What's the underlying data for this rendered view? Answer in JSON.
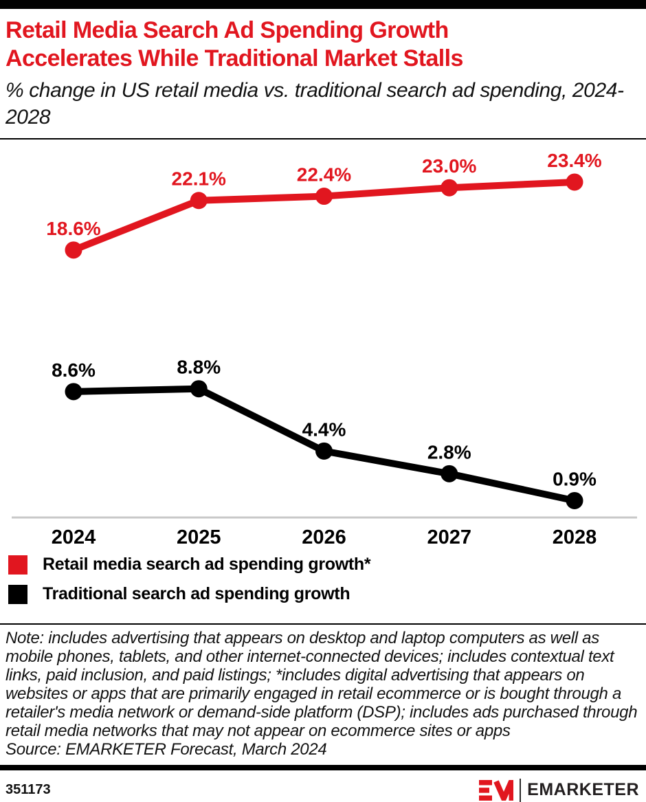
{
  "header": {
    "title": "Retail Media Search Ad Spending Growth Accelerates While Traditional Market Stalls",
    "subtitle": "% change in US retail media vs. traditional search ad spending, 2024-2028"
  },
  "chart_data": {
    "type": "line",
    "categories": [
      "2024",
      "2025",
      "2026",
      "2027",
      "2028"
    ],
    "series": [
      {
        "name": "Retail media search ad spending growth*",
        "color": "#e1161f",
        "values": [
          18.6,
          22.1,
          22.4,
          23.0,
          23.4
        ]
      },
      {
        "name": "Traditional search ad spending growth",
        "color": "#000000",
        "values": [
          8.6,
          8.8,
          4.4,
          2.8,
          0.9
        ]
      }
    ],
    "unit": "%",
    "ylim": [
      0,
      26
    ],
    "grid": false,
    "data_labels": true,
    "legend_position": "bottom",
    "axis_line_color": "#c9c9c9"
  },
  "footnote": {
    "note": "Note: includes advertising that appears on desktop and laptop computers as well as mobile phones, tablets, and other internet-connected devices; includes contextual text links, paid inclusion, and paid listings; *includes digital advertising that appears on websites or apps that are primarily engaged in retail ecommerce or is bought through a retailer's media network or demand-side platform (DSP); includes ads purchased through retail media networks that may not appear on ecommerce sites or apps",
    "source": "Source: EMARKETER Forecast, March 2024"
  },
  "footer": {
    "chart_id": "351173",
    "brand": "EMARKETER"
  }
}
